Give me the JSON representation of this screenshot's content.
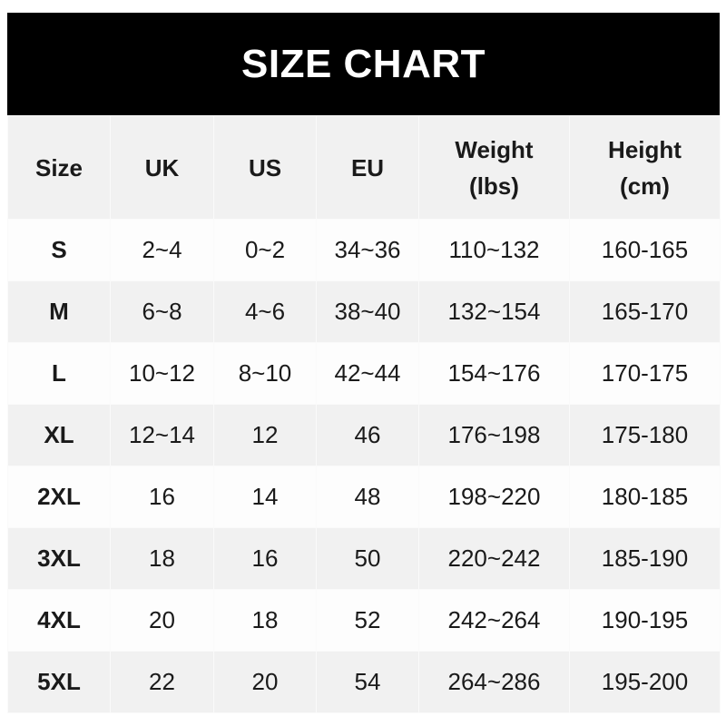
{
  "title": "SIZE CHART",
  "headers": [
    [
      "Size"
    ],
    [
      "UK"
    ],
    [
      "US"
    ],
    [
      "EU"
    ],
    [
      "Weight",
      "(lbs)"
    ],
    [
      "Height",
      "(cm)"
    ]
  ],
  "rows": [
    [
      "S",
      "2~4",
      "0~2",
      "34~36",
      "110~132",
      "160-165"
    ],
    [
      "M",
      "6~8",
      "4~6",
      "38~40",
      "132~154",
      "165-170"
    ],
    [
      "L",
      "10~12",
      "8~10",
      "42~44",
      "154~176",
      "170-175"
    ],
    [
      "XL",
      "12~14",
      "12",
      "46",
      "176~198",
      "175-180"
    ],
    [
      "2XL",
      "16",
      "14",
      "48",
      "198~220",
      "180-185"
    ],
    [
      "3XL",
      "18",
      "16",
      "50",
      "220~242",
      "185-190"
    ],
    [
      "4XL",
      "20",
      "18",
      "52",
      "242~264",
      "190-195"
    ],
    [
      "5XL",
      "22",
      "20",
      "54",
      "264~286",
      "195-200"
    ]
  ]
}
